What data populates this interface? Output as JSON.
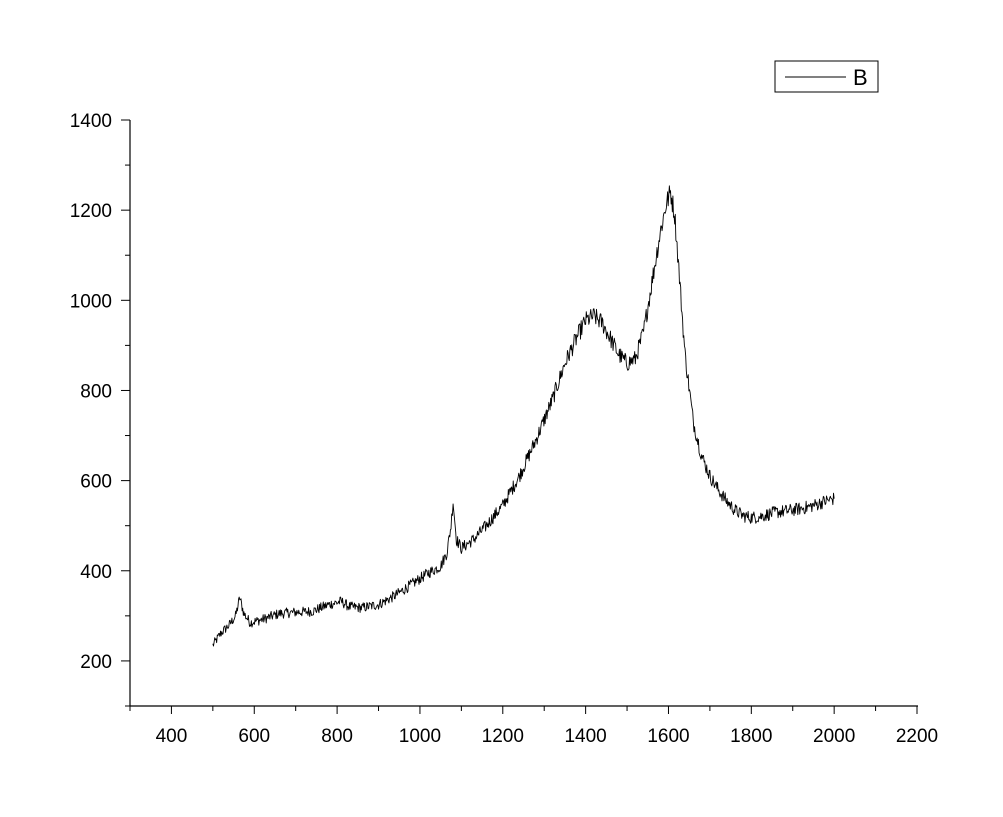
{
  "chart_data": {
    "type": "line",
    "title": "",
    "xlabel": "",
    "ylabel": "",
    "xlim": [
      300,
      2200
    ],
    "ylim": [
      100,
      1400
    ],
    "x_major_ticks": [
      400,
      600,
      800,
      1000,
      1200,
      1400,
      1600,
      1800,
      2000,
      2200
    ],
    "y_major_ticks": [
      200,
      400,
      600,
      800,
      1000,
      1200,
      1400
    ],
    "grid": false,
    "legend_position": "top-right",
    "colors": {
      "line": "#000000",
      "axis": "#000000",
      "background": "#ffffff"
    },
    "series": [
      {
        "name": "B",
        "x": [
          500,
          520,
          540,
          555,
          565,
          575,
          590,
          620,
          660,
          700,
          740,
          780,
          810,
          830,
          860,
          900,
          940,
          980,
          1020,
          1050,
          1065,
          1075,
          1080,
          1088,
          1100,
          1130,
          1160,
          1200,
          1240,
          1280,
          1320,
          1350,
          1380,
          1400,
          1420,
          1440,
          1460,
          1480,
          1500,
          1520,
          1540,
          1560,
          1580,
          1595,
          1605,
          1615,
          1625,
          1640,
          1660,
          1680,
          1700,
          1720,
          1740,
          1760,
          1780,
          1800,
          1820,
          1840,
          1860,
          1880,
          1900,
          1920,
          1940,
          1960,
          1980,
          2000
        ],
        "y": [
          235,
          262,
          280,
          300,
          340,
          305,
          285,
          292,
          305,
          308,
          310,
          325,
          332,
          320,
          318,
          325,
          345,
          370,
          395,
          410,
          440,
          500,
          555,
          470,
          450,
          470,
          500,
          545,
          610,
          690,
          780,
          860,
          920,
          955,
          965,
          950,
          915,
          880,
          860,
          870,
          930,
          1040,
          1150,
          1215,
          1240,
          1190,
          1070,
          880,
          730,
          655,
          610,
          580,
          555,
          535,
          522,
          518,
          520,
          525,
          530,
          532,
          535,
          538,
          542,
          548,
          555,
          560
        ]
      }
    ]
  }
}
